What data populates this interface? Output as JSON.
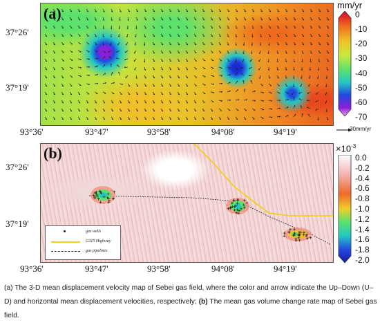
{
  "panel_a": {
    "letter": "(a)",
    "colorbar_unit": "mm/yr",
    "colorbar_ticks": [
      "0",
      "-10",
      "-20",
      "-30",
      "-40",
      "-50",
      "-60",
      "-70"
    ],
    "scale_arrow_label": "30mm/yr",
    "colors": [
      "#d4002b",
      "#ee6a1d",
      "#f0c02a",
      "#c8ea3c",
      "#5ce26c",
      "#23c8c4",
      "#2148e0",
      "#8a1fd8",
      "#f0a0f8"
    ]
  },
  "panel_b": {
    "letter": "(b)",
    "colorbar_unit": "×10",
    "colorbar_exponent": "-3",
    "colorbar_ticks": [
      "0.0",
      "-0.2",
      "-0.4",
      "-0.6",
      "-0.8",
      "-1.0",
      "-1.2",
      "-1.4",
      "-1.6",
      "-1.8",
      "-2.0"
    ],
    "legend": {
      "gas_wells": "gas wells",
      "highway": "G315 Highway",
      "pipelines": "gas pipelines"
    }
  },
  "axes": {
    "lat_ticks": [
      "37°26'",
      "37°19'"
    ],
    "lon_ticks": [
      "93°36'",
      "93°47'",
      "93°58'",
      "94°08'",
      "94°19'"
    ]
  },
  "caption": {
    "part1": "(a) The 3-D mean displacement velocity map of Sebei gas field, where the color and arrow indicate the Up–Down (U–D) and horizontal mean displacement velocities, respectively; ",
    "bold_b": "(b)",
    "part2": " The mean gas volume change rate map of Sebei gas field."
  }
}
